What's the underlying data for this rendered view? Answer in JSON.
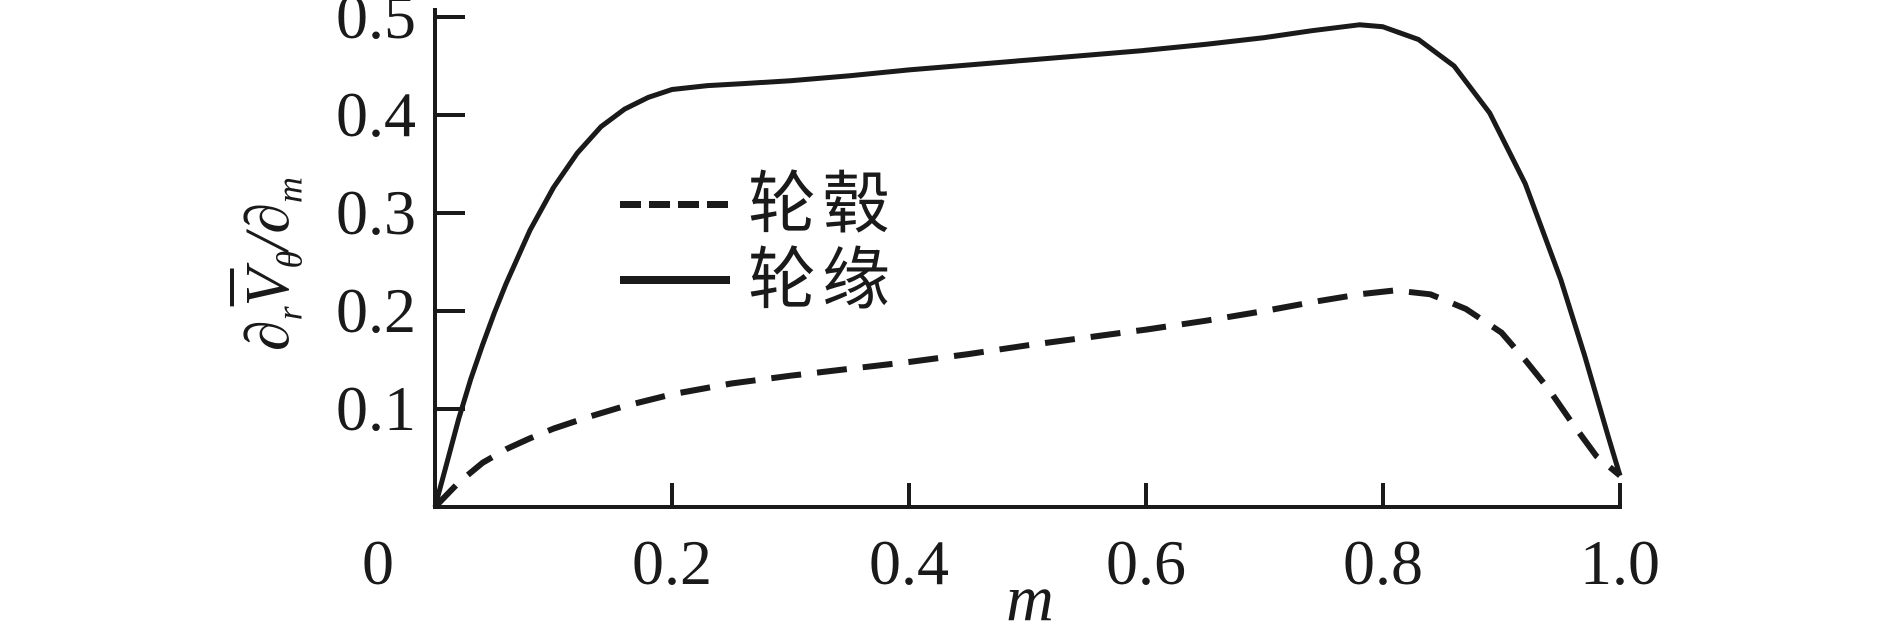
{
  "figure": {
    "background": "#ffffff",
    "ink": "#1a1a1a"
  },
  "ylabel": {
    "partial_1": "∂",
    "sub_r": "r",
    "v_bar": "V",
    "sub_theta": "θ",
    "slash": "/",
    "partial_2": "∂",
    "sub_m": "m"
  },
  "chart_data": {
    "type": "line",
    "title": "",
    "xlabel": "m",
    "ylabel": "∂rV̄θ/∂m",
    "xlim": [
      0,
      1.0
    ],
    "ylim": [
      0,
      0.5
    ],
    "grid": false,
    "legend_position": "inside upper-middle-left",
    "x_ticks": [
      0,
      0.2,
      0.4,
      0.6,
      0.8,
      1.0
    ],
    "x_tick_labels": [
      "0",
      "0.2",
      "0.4",
      "0.6",
      "0.8",
      "1.0"
    ],
    "y_ticks": [
      0.1,
      0.2,
      0.3,
      0.4,
      0.5
    ],
    "y_tick_labels": [
      "0.1",
      "0.2",
      "0.3",
      "0.4",
      "0.5"
    ],
    "series": [
      {
        "name": "轮毂",
        "style": "dashed",
        "x": [
          0,
          0.02,
          0.04,
          0.06,
          0.08,
          0.1,
          0.13,
          0.16,
          0.2,
          0.25,
          0.3,
          0.35,
          0.4,
          0.45,
          0.5,
          0.55,
          0.6,
          0.65,
          0.7,
          0.74,
          0.78,
          0.81,
          0.84,
          0.87,
          0.9,
          0.92,
          0.94,
          0.96,
          0.98,
          1.0
        ],
        "y": [
          0,
          0.025,
          0.045,
          0.059,
          0.07,
          0.08,
          0.092,
          0.103,
          0.115,
          0.126,
          0.134,
          0.141,
          0.148,
          0.156,
          0.165,
          0.173,
          0.181,
          0.19,
          0.2,
          0.209,
          0.217,
          0.221,
          0.217,
          0.202,
          0.178,
          0.15,
          0.12,
          0.085,
          0.052,
          0.032
        ]
      },
      {
        "name": "轮缘",
        "style": "solid",
        "x": [
          0,
          0.01,
          0.02,
          0.03,
          0.04,
          0.05,
          0.06,
          0.08,
          0.1,
          0.12,
          0.14,
          0.16,
          0.18,
          0.2,
          0.23,
          0.26,
          0.3,
          0.35,
          0.4,
          0.45,
          0.5,
          0.55,
          0.6,
          0.65,
          0.7,
          0.74,
          0.78,
          0.8,
          0.83,
          0.86,
          0.89,
          0.92,
          0.95,
          0.97,
          0.99,
          1.0
        ],
        "y": [
          0,
          0.045,
          0.09,
          0.13,
          0.165,
          0.198,
          0.228,
          0.282,
          0.326,
          0.361,
          0.388,
          0.406,
          0.418,
          0.426,
          0.43,
          0.432,
          0.435,
          0.44,
          0.446,
          0.451,
          0.456,
          0.461,
          0.466,
          0.472,
          0.479,
          0.486,
          0.492,
          0.49,
          0.477,
          0.45,
          0.402,
          0.33,
          0.232,
          0.155,
          0.072,
          0.032
        ]
      }
    ]
  }
}
